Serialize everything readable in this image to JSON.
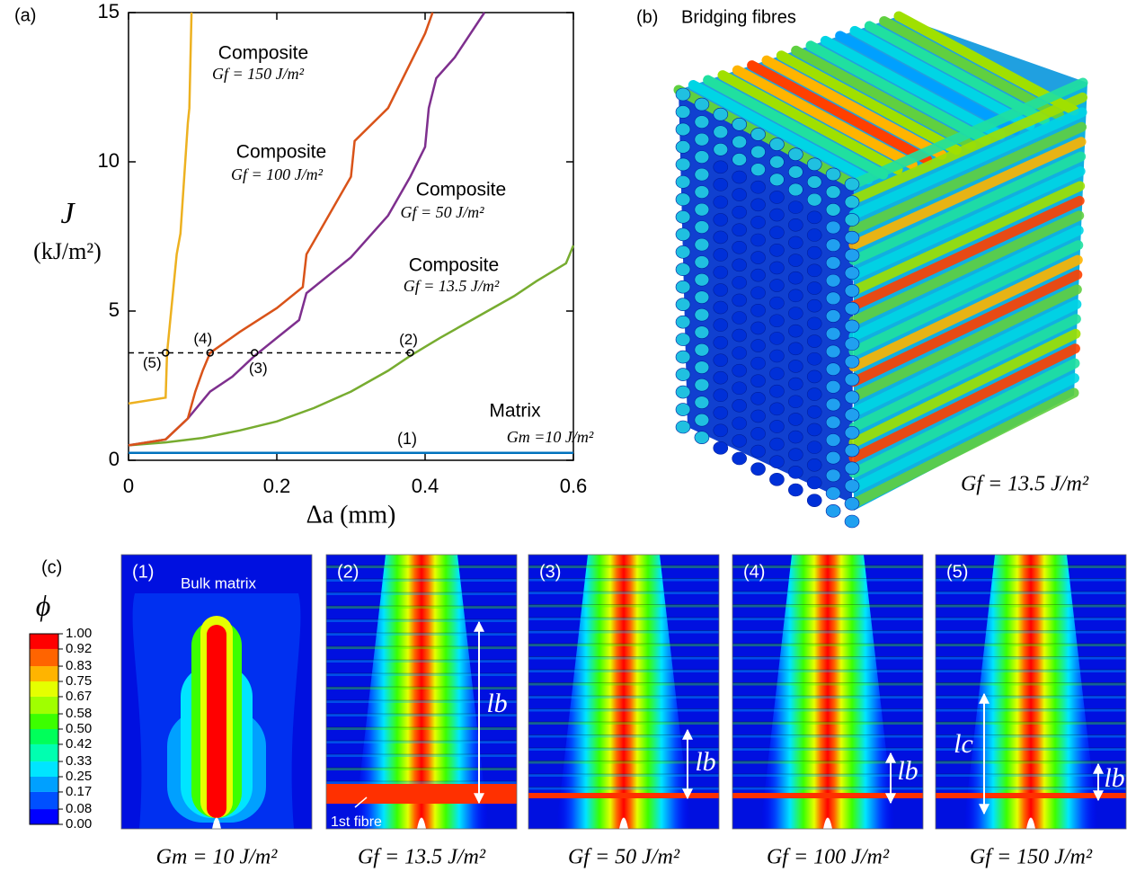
{
  "chart_data": {
    "type": "line",
    "panel_label": "(a)",
    "xlabel": "Δa (mm)",
    "ylabel": "J",
    "ylabel_unit": "(kJ/m²)",
    "xlim": [
      0,
      0.6
    ],
    "ylim": [
      0,
      15
    ],
    "xticks": [
      0,
      0.2,
      0.4,
      0.6
    ],
    "yticks": [
      0,
      5,
      10,
      15
    ],
    "series": [
      {
        "name": "Matrix",
        "label": "Gm =10 J/m²",
        "color": "#0072bd",
        "x": [
          0,
          0.6
        ],
        "values": [
          0.25,
          0.25
        ]
      },
      {
        "name": "Composite",
        "label": "Gf = 13.5 J/m²",
        "color": "#77ac30",
        "x": [
          0,
          0.05,
          0.1,
          0.15,
          0.2,
          0.25,
          0.3,
          0.35,
          0.38,
          0.42,
          0.47,
          0.52,
          0.55,
          0.59,
          0.6
        ],
        "values": [
          0.5,
          0.6,
          0.75,
          1.0,
          1.3,
          1.75,
          2.3,
          3.0,
          3.5,
          4.1,
          4.8,
          5.5,
          6.0,
          6.6,
          7.2
        ]
      },
      {
        "name": "Composite",
        "label": "Gf = 50 J/m²",
        "color": "#7e2f8e",
        "x": [
          0,
          0.05,
          0.08,
          0.1,
          0.11,
          0.14,
          0.17,
          0.2,
          0.23,
          0.24,
          0.3,
          0.35,
          0.38,
          0.4,
          0.405,
          0.415,
          0.44,
          0.48
        ],
        "values": [
          0.5,
          0.7,
          1.4,
          2.0,
          2.3,
          2.8,
          3.5,
          4.1,
          4.7,
          5.6,
          6.8,
          8.2,
          9.5,
          10.5,
          11.8,
          12.8,
          13.5,
          15
        ]
      },
      {
        "name": "Composite",
        "label": "Gf = 100 J/m²",
        "color": "#d95319",
        "x": [
          0,
          0.05,
          0.08,
          0.09,
          0.1,
          0.11,
          0.15,
          0.2,
          0.235,
          0.24,
          0.3,
          0.305,
          0.35,
          0.4,
          0.41
        ],
        "values": [
          0.5,
          0.7,
          1.4,
          2.3,
          3.0,
          3.6,
          4.3,
          5.1,
          5.8,
          6.9,
          9.5,
          10.7,
          11.8,
          14.3,
          15
        ]
      },
      {
        "name": "Composite",
        "label": "Gf = 150 J/m²",
        "color": "#edb120",
        "x": [
          0,
          0.05,
          0.052,
          0.065,
          0.07,
          0.08,
          0.082,
          0.085
        ],
        "values": [
          1.9,
          2.1,
          3.6,
          6.9,
          7.6,
          11.3,
          11.8,
          15
        ]
      }
    ],
    "reference_line": {
      "y": 3.6,
      "x": [
        0,
        0.38
      ]
    },
    "matrix_marker": "(1)",
    "points": [
      {
        "label": "(2)",
        "x": 0.38,
        "y": 3.6
      },
      {
        "label": "(3)",
        "x": 0.17,
        "y": 3.6
      },
      {
        "label": "(4)",
        "x": 0.11,
        "y": 3.6
      },
      {
        "label": "(5)",
        "x": 0.05,
        "y": 3.6
      }
    ]
  },
  "panel_b": {
    "label": "(b)",
    "title": "Bridging fibres",
    "caption": "Gf = 13.5 J/m²"
  },
  "panel_c": {
    "label": "(c)",
    "colorbar": {
      "symbol": "ϕ",
      "colors": [
        "#0000ff",
        "#0050ff",
        "#00a0ff",
        "#00e5ff",
        "#00ffb0",
        "#00ff5a",
        "#3cff00",
        "#a0ff00",
        "#e5ff00",
        "#ffb400",
        "#ff6400",
        "#ff0000"
      ],
      "ticks": [
        {
          "value": 0,
          "label": "0.00"
        },
        {
          "value": 0.08,
          "label": "0.08"
        },
        {
          "value": 0.17,
          "label": "0.17"
        },
        {
          "value": 0.25,
          "label": "0.25"
        },
        {
          "value": 0.33,
          "label": "0.33"
        },
        {
          "value": 0.42,
          "label": "0.42"
        },
        {
          "value": 0.5,
          "label": "0.50"
        },
        {
          "value": 0.58,
          "label": "0.58"
        },
        {
          "value": 0.67,
          "label": "0.67"
        },
        {
          "value": 0.75,
          "label": "0.75"
        },
        {
          "value": 0.83,
          "label": "0.83"
        },
        {
          "value": 0.92,
          "label": "0.92"
        },
        {
          "value": 1,
          "label": "1.00"
        }
      ]
    },
    "images": [
      {
        "label": "(1)",
        "caption": "Gm = 10 J/m²",
        "annotations": [
          "Bulk matrix"
        ]
      },
      {
        "label": "(2)",
        "caption": "Gf = 13.5 J/m²",
        "annotations": [
          "lb",
          "1st fibre"
        ]
      },
      {
        "label": "(3)",
        "caption": "Gf = 50 J/m²",
        "annotations": [
          "lb"
        ]
      },
      {
        "label": "(4)",
        "caption": "Gf = 100 J/m²",
        "annotations": [
          "lb"
        ]
      },
      {
        "label": "(5)",
        "caption": "Gf = 150 J/m²",
        "annotations": [
          "lc",
          "lb"
        ]
      }
    ]
  }
}
